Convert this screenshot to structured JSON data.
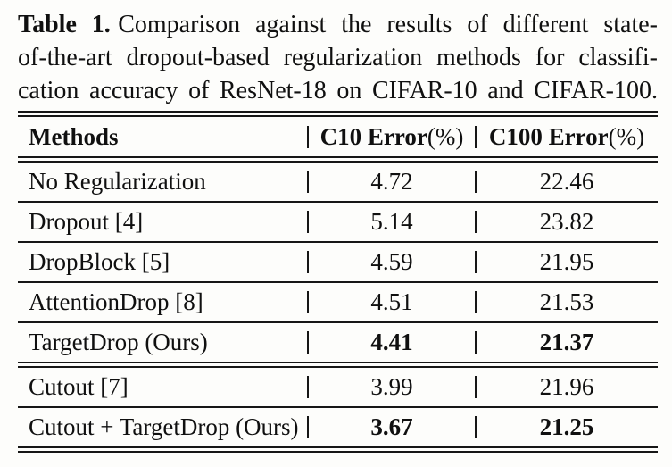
{
  "caption": {
    "label": "Table 1.",
    "lines": [
      "Comparison against the results of different state-",
      "of-the-art dropout-based regularization methods for classifi-",
      "cation accuracy of ResNet-18 on CIFAR-10 and CIFAR-100."
    ]
  },
  "table": {
    "header": {
      "methods": "Methods",
      "c10_bold": "C10 Error",
      "c100_bold": "C100 Error",
      "pct": "(%)"
    },
    "rows": [
      {
        "method": "No Regularization",
        "c10": "4.72",
        "c100": "22.46",
        "bold_values": false
      },
      {
        "method": "Dropout [4]",
        "c10": "5.14",
        "c100": "23.82",
        "bold_values": false
      },
      {
        "method": "DropBlock [5]",
        "c10": "4.59",
        "c100": "21.95",
        "bold_values": false
      },
      {
        "method": "AttentionDrop [8]",
        "c10": "4.51",
        "c100": "21.53",
        "bold_values": false
      },
      {
        "method": "TargetDrop (Ours)",
        "c10": "4.41",
        "c100": "21.37",
        "bold_values": true
      },
      {
        "method": "Cutout [7]",
        "c10": "3.99",
        "c100": "21.96",
        "bold_values": false
      },
      {
        "method": "Cutout + TargetDrop (Ours)",
        "c10": "3.67",
        "c100": "21.25",
        "bold_values": true
      }
    ],
    "colors": {
      "text": "#101010",
      "rule": "#161616",
      "background": "#fdfdfb"
    }
  }
}
